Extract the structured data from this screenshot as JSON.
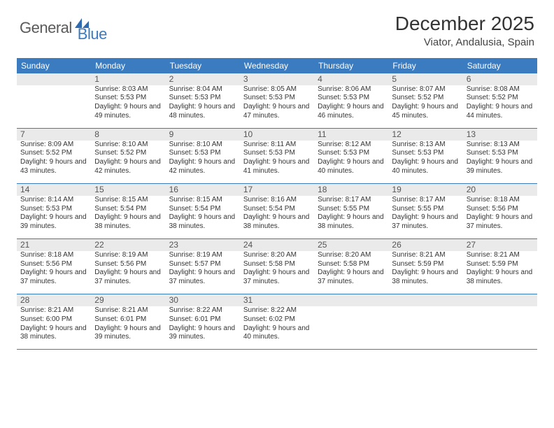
{
  "logo": {
    "general": "General",
    "blue": "Blue"
  },
  "title": "December 2025",
  "subtitle": "Viator, Andalusia, Spain",
  "colors": {
    "header_bg": "#3b7bbf",
    "header_text": "#ffffff",
    "daybar_bg": "#eaeaea",
    "text": "#333333",
    "logo_gray": "#5a5a5a",
    "logo_blue": "#3b7bbf",
    "row_border": "#3b7bbf"
  },
  "weekdays": [
    "Sunday",
    "Monday",
    "Tuesday",
    "Wednesday",
    "Thursday",
    "Friday",
    "Saturday"
  ],
  "weeks": [
    {
      "nums": [
        "",
        "1",
        "2",
        "3",
        "4",
        "5",
        "6"
      ],
      "cells": [
        "",
        "Sunrise: 8:03 AM\nSunset: 5:53 PM\nDaylight: 9 hours and 49 minutes.",
        "Sunrise: 8:04 AM\nSunset: 5:53 PM\nDaylight: 9 hours and 48 minutes.",
        "Sunrise: 8:05 AM\nSunset: 5:53 PM\nDaylight: 9 hours and 47 minutes.",
        "Sunrise: 8:06 AM\nSunset: 5:53 PM\nDaylight: 9 hours and 46 minutes.",
        "Sunrise: 8:07 AM\nSunset: 5:52 PM\nDaylight: 9 hours and 45 minutes.",
        "Sunrise: 8:08 AM\nSunset: 5:52 PM\nDaylight: 9 hours and 44 minutes."
      ]
    },
    {
      "nums": [
        "7",
        "8",
        "9",
        "10",
        "11",
        "12",
        "13"
      ],
      "cells": [
        "Sunrise: 8:09 AM\nSunset: 5:52 PM\nDaylight: 9 hours and 43 minutes.",
        "Sunrise: 8:10 AM\nSunset: 5:52 PM\nDaylight: 9 hours and 42 minutes.",
        "Sunrise: 8:10 AM\nSunset: 5:53 PM\nDaylight: 9 hours and 42 minutes.",
        "Sunrise: 8:11 AM\nSunset: 5:53 PM\nDaylight: 9 hours and 41 minutes.",
        "Sunrise: 8:12 AM\nSunset: 5:53 PM\nDaylight: 9 hours and 40 minutes.",
        "Sunrise: 8:13 AM\nSunset: 5:53 PM\nDaylight: 9 hours and 40 minutes.",
        "Sunrise: 8:13 AM\nSunset: 5:53 PM\nDaylight: 9 hours and 39 minutes."
      ]
    },
    {
      "nums": [
        "14",
        "15",
        "16",
        "17",
        "18",
        "19",
        "20"
      ],
      "cells": [
        "Sunrise: 8:14 AM\nSunset: 5:53 PM\nDaylight: 9 hours and 39 minutes.",
        "Sunrise: 8:15 AM\nSunset: 5:54 PM\nDaylight: 9 hours and 38 minutes.",
        "Sunrise: 8:15 AM\nSunset: 5:54 PM\nDaylight: 9 hours and 38 minutes.",
        "Sunrise: 8:16 AM\nSunset: 5:54 PM\nDaylight: 9 hours and 38 minutes.",
        "Sunrise: 8:17 AM\nSunset: 5:55 PM\nDaylight: 9 hours and 38 minutes.",
        "Sunrise: 8:17 AM\nSunset: 5:55 PM\nDaylight: 9 hours and 37 minutes.",
        "Sunrise: 8:18 AM\nSunset: 5:56 PM\nDaylight: 9 hours and 37 minutes."
      ]
    },
    {
      "nums": [
        "21",
        "22",
        "23",
        "24",
        "25",
        "26",
        "27"
      ],
      "cells": [
        "Sunrise: 8:18 AM\nSunset: 5:56 PM\nDaylight: 9 hours and 37 minutes.",
        "Sunrise: 8:19 AM\nSunset: 5:56 PM\nDaylight: 9 hours and 37 minutes.",
        "Sunrise: 8:19 AM\nSunset: 5:57 PM\nDaylight: 9 hours and 37 minutes.",
        "Sunrise: 8:20 AM\nSunset: 5:58 PM\nDaylight: 9 hours and 37 minutes.",
        "Sunrise: 8:20 AM\nSunset: 5:58 PM\nDaylight: 9 hours and 37 minutes.",
        "Sunrise: 8:21 AM\nSunset: 5:59 PM\nDaylight: 9 hours and 38 minutes.",
        "Sunrise: 8:21 AM\nSunset: 5:59 PM\nDaylight: 9 hours and 38 minutes."
      ]
    },
    {
      "nums": [
        "28",
        "29",
        "30",
        "31",
        "",
        "",
        ""
      ],
      "cells": [
        "Sunrise: 8:21 AM\nSunset: 6:00 PM\nDaylight: 9 hours and 38 minutes.",
        "Sunrise: 8:21 AM\nSunset: 6:01 PM\nDaylight: 9 hours and 39 minutes.",
        "Sunrise: 8:22 AM\nSunset: 6:01 PM\nDaylight: 9 hours and 39 minutes.",
        "Sunrise: 8:22 AM\nSunset: 6:02 PM\nDaylight: 9 hours and 40 minutes.",
        "",
        "",
        ""
      ]
    }
  ]
}
